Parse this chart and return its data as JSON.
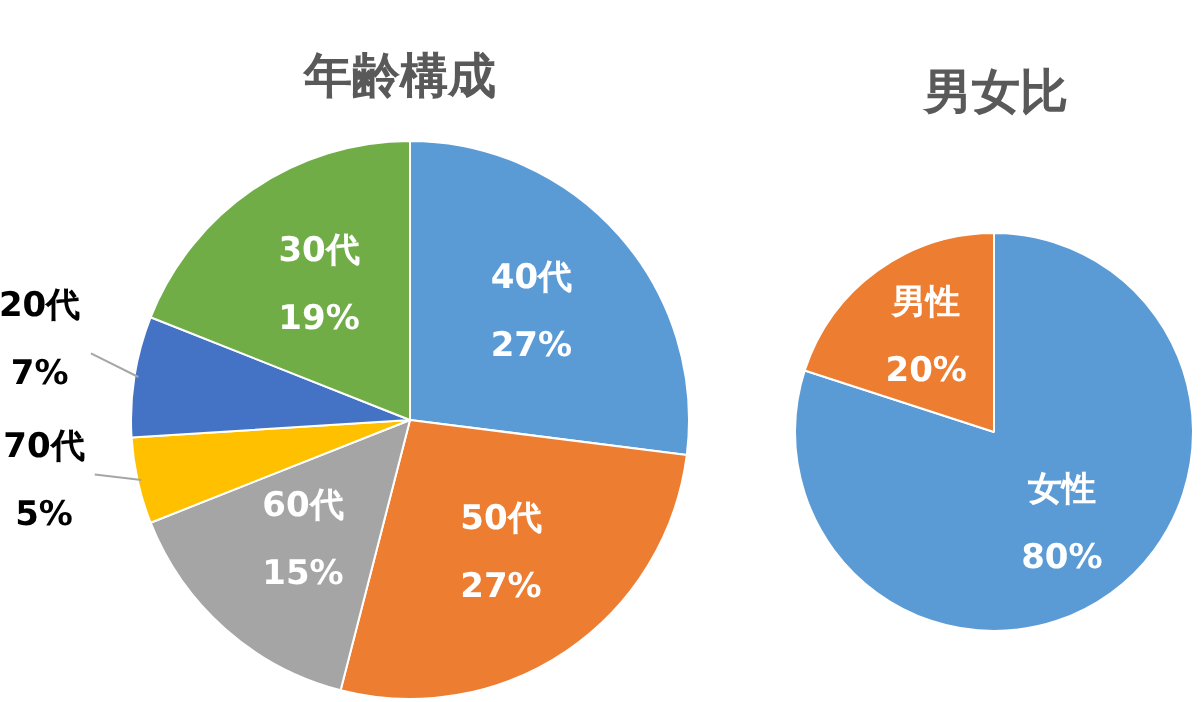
{
  "chart_data": [
    {
      "type": "pie",
      "title": "年齢構成",
      "categories": [
        "40代",
        "50代",
        "60代",
        "70代",
        "20代",
        "30代"
      ],
      "values": [
        27,
        27,
        15,
        5,
        7,
        19
      ],
      "colors": [
        "#5b9bd5",
        "#ed7d31",
        "#a5a5a5",
        "#ffc000",
        "#4472c4",
        "#70ad47"
      ],
      "value_labels": [
        "27%",
        "27%",
        "15%",
        "5%",
        "7%",
        "19%"
      ]
    },
    {
      "type": "pie",
      "title": "男女比",
      "categories": [
        "女性",
        "男性"
      ],
      "values": [
        80,
        20
      ],
      "colors": [
        "#5b9bd5",
        "#ed7d31"
      ],
      "value_labels": [
        "80%",
        "20%"
      ]
    }
  ]
}
